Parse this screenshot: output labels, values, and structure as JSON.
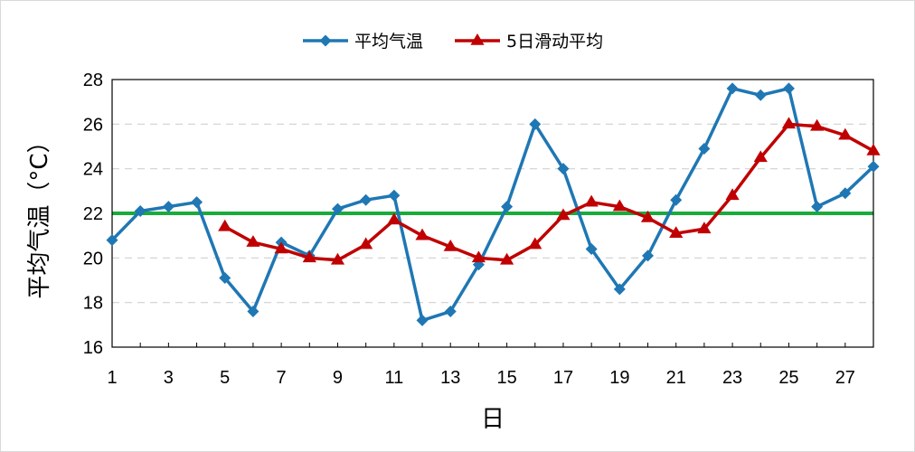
{
  "chart_data": {
    "type": "line",
    "title": "",
    "xlabel": "日",
    "ylabel": "平均气温（°C）",
    "ylim": [
      16,
      28
    ],
    "xlim": [
      1,
      28
    ],
    "yticks": [
      16,
      18,
      20,
      22,
      24,
      26,
      28
    ],
    "xticks": [
      1,
      3,
      5,
      7,
      9,
      11,
      13,
      15,
      17,
      19,
      21,
      23,
      25,
      27
    ],
    "grid": "horizontal-dashed",
    "legend_position": "top-center",
    "reference_line": {
      "y": 22,
      "color": "#1aab3c"
    },
    "series": [
      {
        "name": "平均气温",
        "color": "#1f77b4",
        "marker": "diamond",
        "x": [
          1,
          2,
          3,
          4,
          5,
          6,
          7,
          8,
          9,
          10,
          11,
          12,
          13,
          14,
          15,
          16,
          17,
          18,
          19,
          20,
          21,
          22,
          23,
          24,
          25,
          26,
          27,
          28
        ],
        "values": [
          20.8,
          22.1,
          22.3,
          22.5,
          19.1,
          17.6,
          20.7,
          20.1,
          22.2,
          22.6,
          22.8,
          17.2,
          17.6,
          19.7,
          22.3,
          26.0,
          24.0,
          20.4,
          18.6,
          20.1,
          22.6,
          24.9,
          27.6,
          27.3,
          27.6,
          22.3,
          22.9,
          24.1
        ]
      },
      {
        "name": "5日滑动平均",
        "color": "#c00000",
        "marker": "triangle",
        "x": [
          5,
          6,
          7,
          8,
          9,
          10,
          11,
          12,
          13,
          14,
          15,
          16,
          17,
          18,
          19,
          20,
          21,
          22,
          23,
          24,
          25,
          26,
          27,
          28
        ],
        "values": [
          21.4,
          20.7,
          20.4,
          20.0,
          19.9,
          20.6,
          21.7,
          21.0,
          20.5,
          20.0,
          19.9,
          20.6,
          21.9,
          22.5,
          22.3,
          21.8,
          21.1,
          21.3,
          22.8,
          24.5,
          26.0,
          25.9,
          25.5,
          24.8
        ]
      }
    ]
  }
}
